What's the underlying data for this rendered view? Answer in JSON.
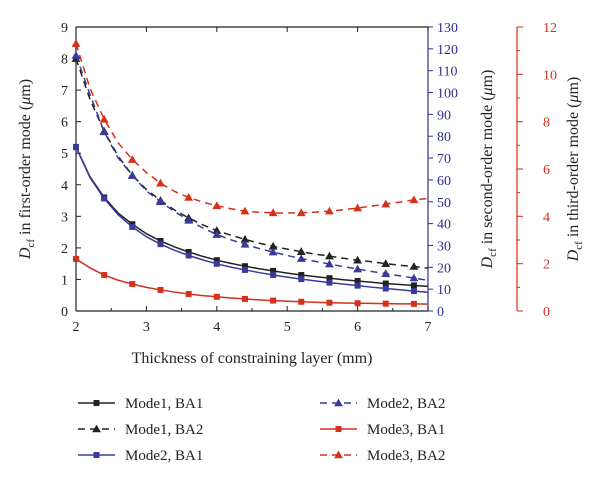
{
  "chart_data": {
    "type": "line",
    "xlabel": "Thickness of constraining layer (mm)",
    "ylabel_left": {
      "main": "D",
      "sub": "cf",
      "rest": " in first-order mode (",
      "unit_italic": "μ",
      "unit_rest": "m)"
    },
    "ylabel_right1": {
      "main": "D",
      "sub": "cf",
      "rest": " in second-order mode (",
      "unit_italic": "μ",
      "unit_rest": "m)"
    },
    "ylabel_right2": {
      "main": "D",
      "sub": "cf",
      "rest": " in third-order mode (",
      "unit_italic": "μ",
      "unit_rest": "m)"
    },
    "x_range": [
      2,
      7
    ],
    "x_ticks": [
      "2",
      "3",
      "4",
      "5",
      "6",
      "7"
    ],
    "y_left": {
      "range": [
        0,
        9
      ],
      "ticks": [
        "0",
        "1",
        "2",
        "3",
        "4",
        "5",
        "6",
        "7",
        "8",
        "9"
      ],
      "color": "#222222"
    },
    "y_right1": {
      "range": [
        0,
        130
      ],
      "ticks": [
        "0",
        "10",
        "20",
        "30",
        "40",
        "50",
        "60",
        "70",
        "80",
        "90",
        "100",
        "110",
        "120",
        "130"
      ],
      "color": "#2e2e8f"
    },
    "y_right2": {
      "range": [
        0,
        12
      ],
      "ticks": [
        "0",
        "2",
        "4",
        "6",
        "8",
        "10",
        "12"
      ],
      "color": "#d4301a"
    },
    "x": [
      2.0,
      2.2,
      2.4,
      2.6,
      2.8,
      3.0,
      3.2,
      3.4,
      3.6,
      3.8,
      4.0,
      4.2,
      4.4,
      4.6,
      4.8,
      5.0,
      5.2,
      5.4,
      5.6,
      5.8,
      6.0,
      6.2,
      6.4,
      6.6,
      6.8,
      7.0
    ],
    "series": [
      {
        "name": "Mode1, BA1",
        "axis": "left",
        "color": "#222222",
        "marker": "square",
        "dash": false,
        "values": [
          5.2,
          4.25,
          3.6,
          3.1,
          2.75,
          2.45,
          2.22,
          2.03,
          1.87,
          1.73,
          1.61,
          1.51,
          1.42,
          1.34,
          1.27,
          1.2,
          1.14,
          1.09,
          1.04,
          0.99,
          0.95,
          0.91,
          0.87,
          0.84,
          0.81,
          0.78
        ]
      },
      {
        "name": "Mode1, BA2",
        "axis": "left",
        "color": "#222222",
        "marker": "triangle",
        "dash": true,
        "values": [
          8.0,
          6.7,
          5.7,
          4.9,
          4.3,
          3.85,
          3.5,
          3.2,
          2.95,
          2.73,
          2.55,
          2.4,
          2.27,
          2.15,
          2.05,
          1.96,
          1.88,
          1.8,
          1.74,
          1.67,
          1.61,
          1.56,
          1.5,
          1.45,
          1.41,
          1.36
        ]
      },
      {
        "name": "Mode2, BA1",
        "axis": "right1",
        "color": "#3a3a9e",
        "marker": "square",
        "dash": false,
        "values": [
          75,
          61,
          51.5,
          44,
          38.5,
          34,
          30.6,
          27.8,
          25.4,
          23.4,
          21.6,
          20.1,
          18.8,
          17.6,
          16.5,
          15.5,
          14.6,
          13.8,
          13.0,
          12.3,
          11.6,
          10.9,
          10.3,
          9.7,
          9.1,
          8.6
        ]
      },
      {
        "name": "Mode2, BA2",
        "axis": "right1",
        "color": "#3a3a9e",
        "marker": "triangle",
        "dash": true,
        "values": [
          117,
          99,
          82,
          70,
          62,
          55,
          50,
          45.5,
          41.5,
          38,
          35,
          32.6,
          30.5,
          28.6,
          27,
          25.4,
          24,
          22.7,
          21.5,
          20.3,
          19.2,
          18.1,
          17.1,
          16.1,
          15.1,
          14.0
        ]
      },
      {
        "name": "Mode3, BA1",
        "axis": "right2",
        "color": "#d4301a",
        "marker": "square",
        "dash": false,
        "values": [
          2.2,
          1.82,
          1.52,
          1.3,
          1.14,
          1.0,
          0.89,
          0.8,
          0.72,
          0.65,
          0.6,
          0.55,
          0.51,
          0.47,
          0.44,
          0.41,
          0.39,
          0.37,
          0.35,
          0.34,
          0.33,
          0.32,
          0.31,
          0.3,
          0.3,
          0.29
        ]
      },
      {
        "name": "Mode3, BA2",
        "axis": "right2",
        "color": "#d4301a",
        "marker": "triangle",
        "dash": true,
        "values": [
          11.3,
          9.4,
          8.1,
          7.1,
          6.4,
          5.85,
          5.4,
          5.05,
          4.8,
          4.6,
          4.45,
          4.32,
          4.22,
          4.17,
          4.15,
          4.14,
          4.15,
          4.18,
          4.22,
          4.28,
          4.35,
          4.43,
          4.52,
          4.6,
          4.7,
          4.75
        ]
      }
    ],
    "legend_order": [
      0,
      3,
      1,
      4,
      2,
      5
    ],
    "legend_position": "bottom",
    "grid": false
  }
}
